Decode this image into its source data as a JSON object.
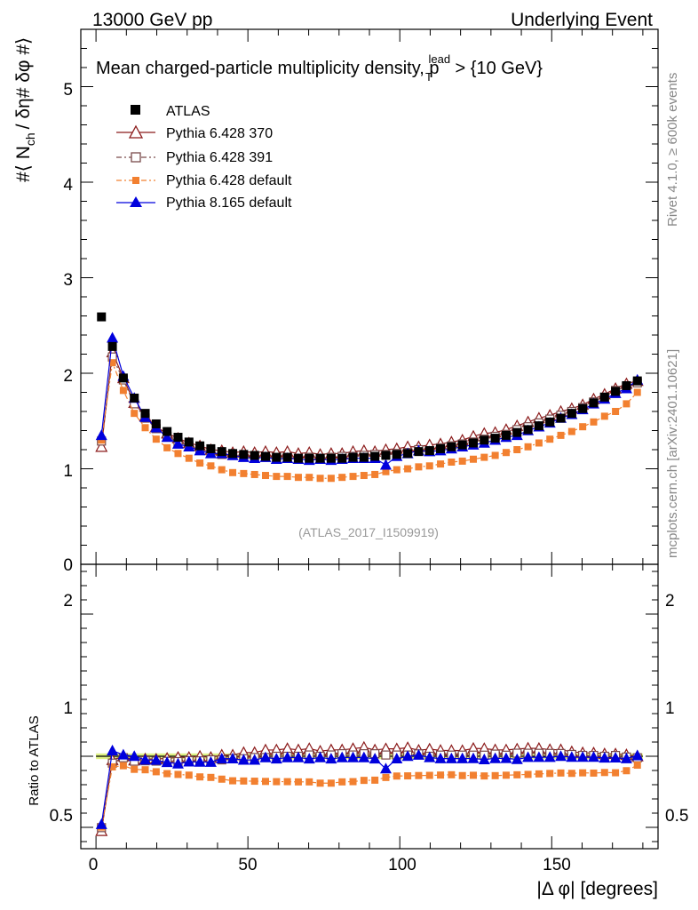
{
  "header": {
    "left": "13000 GeV pp",
    "right": "Underlying Event"
  },
  "side": {
    "rivet": "Rivet 4.1.0, ≥ 600k events",
    "mcplots": "mcplots.cern.ch [arXiv:2401.10621]"
  },
  "labels": {
    "title": "Mean charged-particle multiplicity density, p",
    "title_sup": "lead",
    "title_sub": "T",
    "title_end": " > {10 GeV}",
    "ylabel": "#⟨ N",
    "ylabel_sub": "ch",
    "ylabel_end": "/ δη# δφ #⟩",
    "ratio_ylabel": "Ratio to ATLAS",
    "xlabel": "|Δ φ| [degrees]",
    "analysis": "(ATLAS_2017_I1509919)"
  },
  "ticks": {
    "main_y": [
      "0",
      "1",
      "2",
      "3",
      "4",
      "5"
    ],
    "ratio_left": [
      "0.5",
      "1",
      "2"
    ],
    "ratio_right": [
      "0.5",
      "1",
      "2"
    ],
    "x": [
      "0",
      "50",
      "100",
      "150"
    ]
  },
  "legend": [
    {
      "name": "ATLAS",
      "color": "#000000",
      "marker": "filled-square",
      "line": "none"
    },
    {
      "name": "Pythia 6.428 370",
      "color": "#8B1A1A",
      "marker": "open-triangle",
      "line": "solid"
    },
    {
      "name": "Pythia 6.428 391",
      "color": "#7A4A4A",
      "marker": "open-square",
      "line": "dashdot"
    },
    {
      "name": "Pythia 6.428 default",
      "color": "#F28030",
      "marker": "filled-square",
      "line": "dashdot"
    },
    {
      "name": "Pythia 8.165 default",
      "color": "#0000DD",
      "marker": "filled-triangle",
      "line": "solid"
    }
  ],
  "chart_data": {
    "type": "scatter",
    "title": "Mean charged-particle multiplicity density, p_T^lead > 10 GeV",
    "xlabel": "|Δφ| [degrees]",
    "ylabel": "⟨ N_ch / δη δφ ⟩",
    "xlim": [
      -5,
      185
    ],
    "ylim": [
      0,
      5.6
    ],
    "ratio_ylim": [
      0.35,
      2.35
    ],
    "x": [
      1.8,
      5.4,
      9,
      12.6,
      16.2,
      19.8,
      23.4,
      27,
      30.6,
      34.2,
      37.8,
      41.4,
      45,
      48.6,
      52.2,
      55.8,
      59.4,
      63,
      66.6,
      70.2,
      73.8,
      77.4,
      81,
      84.6,
      88.2,
      91.8,
      95.4,
      99,
      102.6,
      106.2,
      109.8,
      113.4,
      117,
      120.6,
      124.2,
      127.8,
      131.4,
      135,
      138.6,
      142.2,
      145.8,
      149.4,
      153,
      156.6,
      160.2,
      163.8,
      167.4,
      171,
      174.6,
      178.2
    ],
    "series": [
      {
        "name": "ATLAS",
        "values": [
          2.59,
          2.28,
          1.95,
          1.74,
          1.58,
          1.47,
          1.39,
          1.33,
          1.28,
          1.24,
          1.21,
          1.18,
          1.16,
          1.15,
          1.14,
          1.13,
          1.12,
          1.12,
          1.11,
          1.11,
          1.11,
          1.11,
          1.11,
          1.12,
          1.12,
          1.13,
          1.14,
          1.15,
          1.16,
          1.18,
          1.19,
          1.21,
          1.23,
          1.25,
          1.27,
          1.3,
          1.32,
          1.35,
          1.38,
          1.41,
          1.45,
          1.49,
          1.53,
          1.58,
          1.63,
          1.69,
          1.75,
          1.81,
          1.87,
          1.92
        ]
      },
      {
        "name": "Pythia 6.428 370",
        "values": [
          1.23,
          2.22,
          1.95,
          1.69,
          1.55,
          1.44,
          1.37,
          1.32,
          1.27,
          1.24,
          1.2,
          1.19,
          1.17,
          1.18,
          1.17,
          1.18,
          1.17,
          1.18,
          1.16,
          1.17,
          1.15,
          1.16,
          1.16,
          1.18,
          1.19,
          1.18,
          1.2,
          1.21,
          1.23,
          1.23,
          1.25,
          1.26,
          1.28,
          1.3,
          1.34,
          1.37,
          1.38,
          1.41,
          1.45,
          1.49,
          1.53,
          1.56,
          1.6,
          1.63,
          1.67,
          1.73,
          1.78,
          1.84,
          1.89,
          1.92
        ]
      },
      {
        "name": "Pythia 6.428 391",
        "values": [
          1.29,
          2.17,
          1.93,
          1.68,
          1.53,
          1.42,
          1.34,
          1.28,
          1.24,
          1.2,
          1.18,
          1.15,
          1.14,
          1.13,
          1.13,
          1.12,
          1.12,
          1.12,
          1.11,
          1.12,
          1.11,
          1.12,
          1.13,
          1.13,
          1.14,
          1.15,
          1.15,
          1.16,
          1.17,
          1.2,
          1.19,
          1.22,
          1.24,
          1.26,
          1.28,
          1.31,
          1.34,
          1.36,
          1.41,
          1.44,
          1.48,
          1.52,
          1.56,
          1.6,
          1.64,
          1.7,
          1.75,
          1.82,
          1.86,
          1.9
        ]
      },
      {
        "name": "Pythia 6.428 default",
        "values": [
          1.3,
          2.11,
          1.82,
          1.58,
          1.43,
          1.31,
          1.22,
          1.16,
          1.11,
          1.06,
          1.03,
          0.99,
          0.96,
          0.95,
          0.94,
          0.93,
          0.92,
          0.92,
          0.91,
          0.91,
          0.9,
          0.9,
          0.91,
          0.92,
          0.93,
          0.94,
          0.97,
          0.99,
          1.0,
          1.02,
          1.03,
          1.05,
          1.07,
          1.08,
          1.1,
          1.12,
          1.14,
          1.17,
          1.2,
          1.23,
          1.27,
          1.31,
          1.35,
          1.39,
          1.44,
          1.49,
          1.55,
          1.6,
          1.68,
          1.8
        ]
      },
      {
        "name": "Pythia 8.165 default",
        "values": [
          1.35,
          2.37,
          1.97,
          1.74,
          1.54,
          1.43,
          1.33,
          1.26,
          1.23,
          1.19,
          1.16,
          1.16,
          1.14,
          1.12,
          1.11,
          1.12,
          1.1,
          1.11,
          1.1,
          1.09,
          1.1,
          1.09,
          1.1,
          1.11,
          1.11,
          1.11,
          1.04,
          1.13,
          1.16,
          1.19,
          1.18,
          1.19,
          1.21,
          1.23,
          1.25,
          1.27,
          1.3,
          1.33,
          1.35,
          1.4,
          1.44,
          1.48,
          1.53,
          1.57,
          1.62,
          1.68,
          1.73,
          1.79,
          1.84,
          1.93
        ]
      }
    ]
  }
}
